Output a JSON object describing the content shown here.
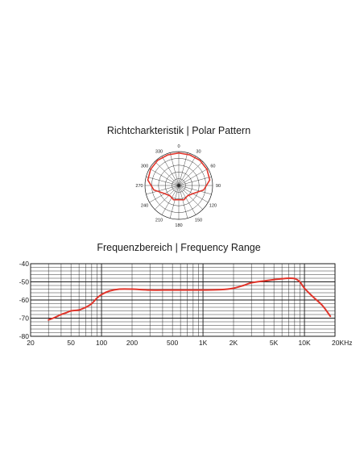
{
  "colors": {
    "curve": "#e0352b",
    "grid": "#1a1a1a",
    "background": "#ffffff"
  },
  "chart_data": [
    {
      "type": "polar",
      "title": "Richtcharkteristik | Polar Pattern",
      "angle_labels": [
        "0",
        "30",
        "60",
        "90",
        "120",
        "150",
        "180",
        "210",
        "240",
        "270",
        "300",
        "330"
      ],
      "r_max": 1,
      "grid_rings": 5,
      "series": [
        {
          "angles": [
            0,
            20,
            40,
            60,
            80,
            100,
            120,
            140,
            160,
            180,
            200,
            220,
            240,
            260,
            280,
            300,
            320,
            340,
            360
          ],
          "values": [
            0.96,
            0.96,
            0.97,
            0.96,
            0.93,
            0.75,
            0.48,
            0.4,
            0.45,
            0.42,
            0.45,
            0.4,
            0.48,
            0.75,
            0.93,
            0.96,
            0.97,
            0.96,
            0.96
          ]
        }
      ]
    },
    {
      "type": "line",
      "title": "Frequenzbereich | Frequency Range",
      "x_scale": "log",
      "xlim": [
        20,
        20000
      ],
      "ylim": [
        -80,
        -40
      ],
      "x_ticks": [
        20,
        50,
        100,
        200,
        500,
        1000,
        2000,
        5000,
        10000,
        20000
      ],
      "x_tick_labels": [
        "20",
        "50",
        "100",
        "200",
        "500",
        "1K",
        "2K",
        "5K",
        "10K",
        "20KHz"
      ],
      "y_ticks": [
        -40,
        -50,
        -60,
        -70,
        -80
      ],
      "y_tick_labels": [
        "-40",
        "-50",
        "-60",
        "-70",
        "-80"
      ],
      "grid": true,
      "series": [
        {
          "x": [
            30,
            35,
            40,
            45,
            50,
            60,
            70,
            80,
            90,
            100,
            120,
            150,
            200,
            300,
            500,
            1000,
            1500,
            2000,
            2500,
            3000,
            4000,
            5000,
            6000,
            7000,
            8000,
            9000,
            10000,
            12000,
            15000,
            18000
          ],
          "y": [
            -71,
            -69.5,
            -68,
            -67,
            -66,
            -65.5,
            -64,
            -62,
            -59,
            -57,
            -55,
            -54,
            -54,
            -54.5,
            -54.5,
            -54.5,
            -54.3,
            -53.5,
            -52,
            -50.5,
            -49.5,
            -48.8,
            -48.3,
            -48,
            -48.2,
            -50,
            -53.5,
            -58,
            -63,
            -69
          ]
        }
      ]
    }
  ]
}
